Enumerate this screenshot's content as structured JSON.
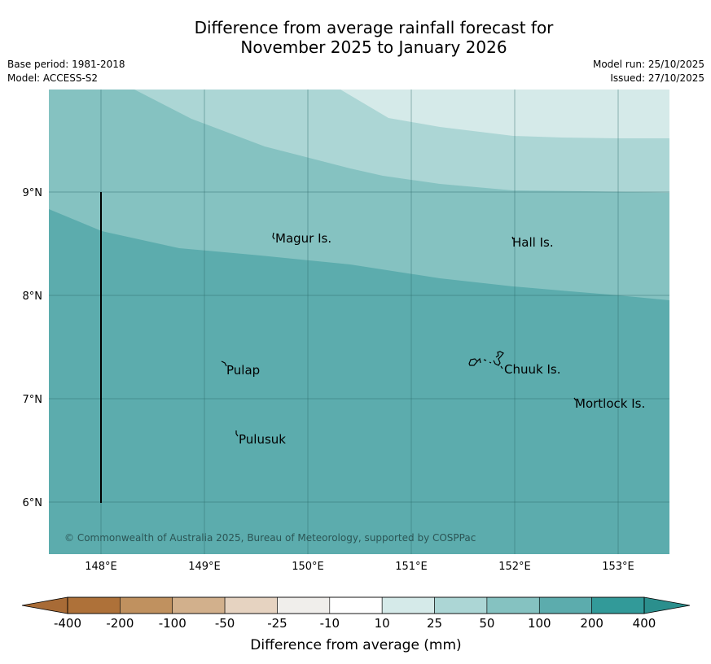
{
  "title": {
    "line1": "Difference from average rainfall forecast for",
    "line2": "November 2025 to January 2026"
  },
  "meta_left": {
    "base_period": "Base period: 1981-2018",
    "model": "Model: ACCESS-S2"
  },
  "meta_right": {
    "model_run": "Model run: 25/10/2025",
    "issued": "Issued: 27/10/2025"
  },
  "map": {
    "lat_ticks": [
      "9°N",
      "8°N",
      "7°N",
      "6°N"
    ],
    "lon_ticks": [
      "148°E",
      "149°E",
      "150°E",
      "151°E",
      "152°E",
      "153°E"
    ],
    "places": [
      "Magur Is.",
      "Hall Is.",
      "Pulap",
      "Chuuk Is.",
      "Mortlock Is.",
      "Pulusuk"
    ],
    "copyright": "© Commonwealth of Australia 2025, Bureau of Meteorology, supported by COSPPac"
  },
  "legend": {
    "tick_labels": [
      "-400",
      "-200",
      "-100",
      "-50",
      "-25",
      "-10",
      "10",
      "25",
      "50",
      "100",
      "200",
      "400"
    ],
    "colors": [
      "#ae7139",
      "#c0915f",
      "#d2b08c",
      "#e6d3c1",
      "#f0eeeb",
      "#ffffff",
      "#d5eae9",
      "#acd6d5",
      "#85c2c1",
      "#5cacad",
      "#329a99"
    ],
    "under_color": "#a86b36",
    "over_color": "#2b8f8d",
    "title": "Difference from average (mm)"
  },
  "colors": {
    "band_200": "#5cacad",
    "band_100": "#85c2c1",
    "band_50": "#acd6d5",
    "band_25": "#d5eae9"
  }
}
